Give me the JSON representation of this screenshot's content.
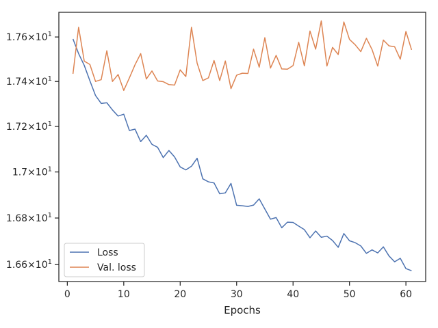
{
  "chart_data": {
    "type": "line",
    "title": "",
    "xlabel": "Epochs",
    "ylabel": "",
    "xlim": [
      -1.5,
      63.5
    ],
    "ylim": [
      16.528,
      17.712
    ],
    "y_scale": "log",
    "grid": false,
    "legend_position": "lower-left",
    "x_ticks": [
      0,
      10,
      20,
      30,
      40,
      50,
      60
    ],
    "x_tick_labels": [
      "0",
      "10",
      "20",
      "30",
      "40",
      "50",
      "60"
    ],
    "y_ticks": [
      16.6,
      16.8,
      17.0,
      17.2,
      17.4,
      17.6
    ],
    "y_tick_labels": [
      {
        "mantissa": "1.66",
        "times": "×10",
        "exp": "1"
      },
      {
        "mantissa": "1.68",
        "times": "×10",
        "exp": "1"
      },
      {
        "mantissa": "1.7",
        "times": "×10",
        "exp": "1"
      },
      {
        "mantissa": "1.72",
        "times": "×10",
        "exp": "1"
      },
      {
        "mantissa": "1.74",
        "times": "×10",
        "exp": "1"
      },
      {
        "mantissa": "1.76",
        "times": "×10",
        "exp": "1"
      }
    ],
    "x": [
      1,
      2,
      3,
      4,
      5,
      6,
      7,
      8,
      9,
      10,
      11,
      12,
      13,
      14,
      15,
      16,
      17,
      18,
      19,
      20,
      21,
      22,
      23,
      24,
      25,
      26,
      27,
      28,
      29,
      30,
      31,
      32,
      33,
      34,
      35,
      36,
      37,
      38,
      39,
      40,
      41,
      42,
      43,
      44,
      45,
      46,
      47,
      48,
      49,
      50,
      51,
      52,
      53,
      54,
      55,
      56,
      57,
      58,
      59,
      60,
      61
    ],
    "series": [
      {
        "name": "Loss",
        "color": "#4c72b0",
        "values": [
          17.591,
          17.525,
          17.472,
          17.403,
          17.337,
          17.302,
          17.305,
          17.273,
          17.246,
          17.254,
          17.182,
          17.188,
          17.133,
          17.161,
          17.121,
          17.108,
          17.063,
          17.094,
          17.066,
          17.022,
          17.009,
          17.025,
          17.06,
          16.97,
          16.957,
          16.952,
          16.905,
          16.909,
          16.95,
          16.855,
          16.853,
          16.85,
          16.856,
          16.883,
          16.839,
          16.795,
          16.802,
          16.758,
          16.782,
          16.781,
          16.765,
          16.75,
          16.715,
          16.744,
          16.717,
          16.722,
          16.703,
          16.674,
          16.733,
          16.702,
          16.694,
          16.68,
          16.648,
          16.663,
          16.65,
          16.676,
          16.637,
          16.612,
          16.627,
          16.583,
          16.574
        ]
      },
      {
        "name": "Val. loss",
        "color": "#dd8452",
        "values": [
          17.434,
          17.644,
          17.491,
          17.476,
          17.4,
          17.408,
          17.538,
          17.4,
          17.431,
          17.36,
          17.416,
          17.475,
          17.525,
          17.411,
          17.447,
          17.402,
          17.399,
          17.386,
          17.384,
          17.452,
          17.422,
          17.644,
          17.482,
          17.404,
          17.416,
          17.494,
          17.404,
          17.492,
          17.368,
          17.428,
          17.437,
          17.436,
          17.545,
          17.464,
          17.597,
          17.46,
          17.517,
          17.456,
          17.455,
          17.471,
          17.576,
          17.47,
          17.627,
          17.545,
          17.673,
          17.469,
          17.553,
          17.521,
          17.668,
          17.589,
          17.565,
          17.534,
          17.594,
          17.543,
          17.469,
          17.586,
          17.56,
          17.556,
          17.5,
          17.625,
          17.542
        ]
      }
    ]
  }
}
